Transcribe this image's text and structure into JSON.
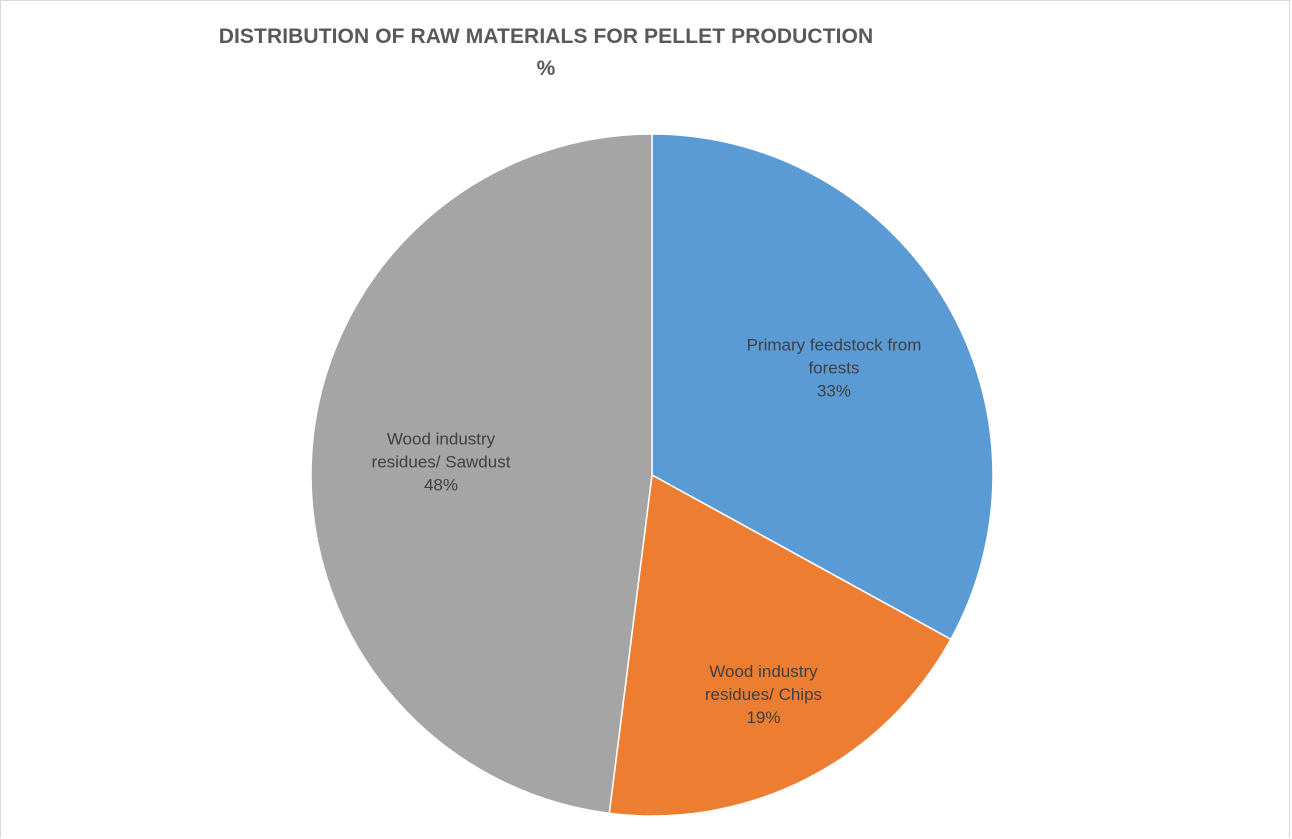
{
  "chart_data": {
    "type": "pie",
    "title": "DISTRIBUTION OF RAW MATERIALS FOR PELLET PRODUCTION",
    "subtitle": "%",
    "slices": [
      {
        "name": "Primary feedstock from forests",
        "label_lines": [
          "Primary feedstock from",
          "forests"
        ],
        "value": 33,
        "value_label": "33%",
        "color": "#5b9bd5"
      },
      {
        "name": "Wood industry residues/ Chips",
        "label_lines": [
          "Wood industry",
          "residues/ Chips"
        ],
        "value": 19,
        "value_label": "19%",
        "color": "#ed7d31"
      },
      {
        "name": "Wood industry residues/ Sawdust",
        "label_lines": [
          "Wood industry",
          "residues/ Sawdust"
        ],
        "value": 48,
        "value_label": "48%",
        "color": "#a5a5a5"
      }
    ],
    "legend": "none",
    "start_angle_deg": 0,
    "direction": "clockwise"
  }
}
